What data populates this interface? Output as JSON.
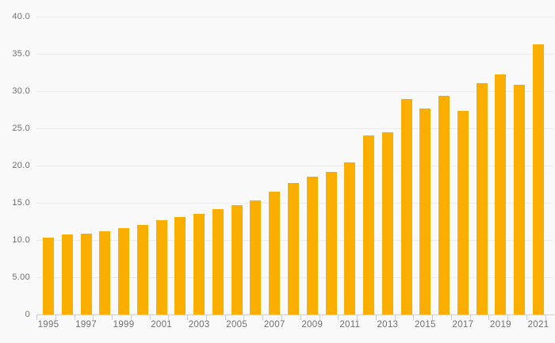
{
  "chart_data": {
    "type": "bar",
    "title": "",
    "xlabel": "",
    "ylabel": "",
    "ylim": [
      0,
      40
    ],
    "y_step": 5,
    "grid": true,
    "legend": false,
    "x": [
      1995,
      1996,
      1997,
      1998,
      1999,
      2000,
      2001,
      2002,
      2003,
      2004,
      2005,
      2006,
      2007,
      2008,
      2009,
      2010,
      2011,
      2012,
      2013,
      2014,
      2015,
      2016,
      2017,
      2018,
      2019,
      2020,
      2021
    ],
    "values": [
      10.3,
      10.7,
      10.9,
      11.2,
      11.6,
      12.0,
      12.7,
      13.1,
      13.5,
      14.1,
      14.7,
      15.3,
      16.5,
      17.7,
      18.5,
      19.2,
      20.4,
      24.0,
      24.5,
      28.9,
      27.7,
      29.4,
      27.3,
      31.1,
      32.2,
      30.8,
      36.3
    ],
    "y_ticks": [
      {
        "value": 0,
        "label": "0"
      },
      {
        "value": 5,
        "label": "5.00"
      },
      {
        "value": 10,
        "label": "10.0"
      },
      {
        "value": 15,
        "label": "15.0"
      },
      {
        "value": 20,
        "label": "20.0"
      },
      {
        "value": 25,
        "label": "25.0"
      },
      {
        "value": 30,
        "label": "30.0"
      },
      {
        "value": 35,
        "label": "35.0"
      },
      {
        "value": 40,
        "label": "40.0"
      }
    ],
    "x_tick_labels": [
      "1995",
      "1997",
      "1999",
      "2001",
      "2003",
      "2005",
      "2007",
      "2009",
      "2011",
      "2013",
      "2015",
      "2017",
      "2019",
      "2021"
    ],
    "colors": {
      "bar": "#f9ae00",
      "gridline": "#ececec",
      "axis": "#c7cfe8",
      "label_text": "#6f6f6f",
      "background": "#f9f9f9"
    }
  }
}
